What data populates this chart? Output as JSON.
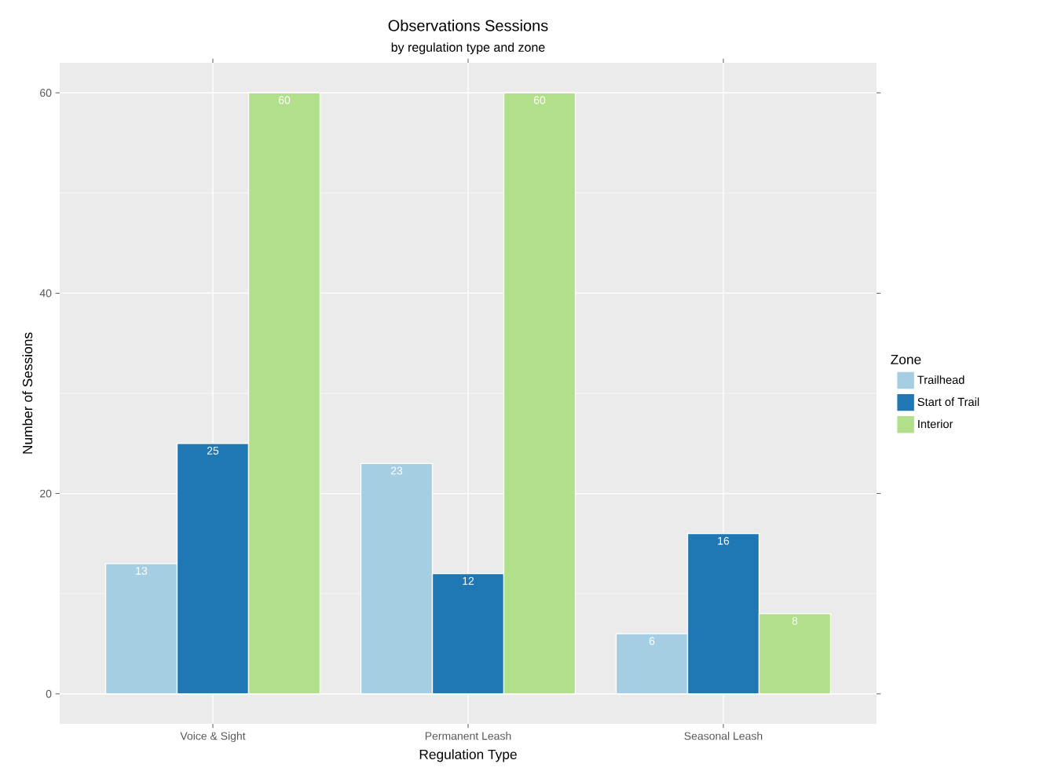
{
  "chart_data": {
    "type": "bar",
    "title": "Observations Sessions",
    "subtitle": "by regulation type and zone",
    "xlabel": "Regulation Type",
    "ylabel": "Number of Sessions",
    "legend_title": "Zone",
    "categories": [
      "Voice & Sight",
      "Permanent Leash",
      "Seasonal Leash"
    ],
    "series": [
      {
        "name": "Trailhead",
        "color": "#a6cee3",
        "values": [
          13,
          23,
          6
        ]
      },
      {
        "name": "Start of Trail",
        "color": "#1f78b4",
        "values": [
          25,
          12,
          16
        ]
      },
      {
        "name": "Interior",
        "color": "#b2df8a",
        "values": [
          60,
          60,
          8
        ]
      }
    ],
    "ylim": [
      -3,
      63
    ],
    "yticks": [
      0,
      20,
      40,
      60
    ],
    "grid": true,
    "legend": "right",
    "data_labels": true
  }
}
